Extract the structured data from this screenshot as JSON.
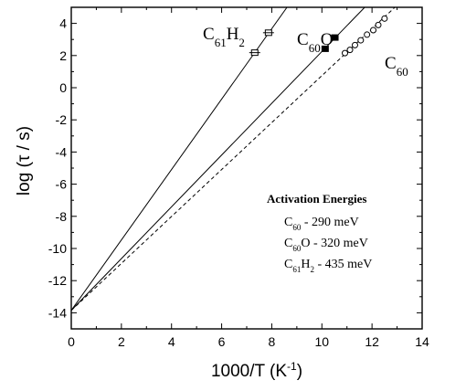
{
  "chart_data": {
    "type": "scatter",
    "xlabel": "1000/T (K",
    "xlabel_sup": "-1",
    "xlabel_close": ")",
    "ylabel": "log (τ / s)",
    "xlim": [
      0,
      14
    ],
    "ylim": [
      -15,
      5
    ],
    "x_ticks": [
      0,
      2,
      4,
      6,
      8,
      10,
      12,
      14
    ],
    "y_ticks": [
      -14,
      -12,
      -10,
      -8,
      -6,
      -4,
      -2,
      0,
      2,
      4
    ],
    "series": [
      {
        "key": "c61h2",
        "label_base": "C",
        "label_sub1": "61",
        "label_mid": "H",
        "label_sub2": "2",
        "marker": "open-square",
        "line_style": "solid",
        "fit": {
          "intercept": -13.85,
          "slope": 2.19
        },
        "points": [
          {
            "x": 7.32,
            "y": 2.18
          },
          {
            "x": 7.87,
            "y": 3.42
          }
        ]
      },
      {
        "key": "c60o",
        "label_base": "C",
        "label_sub1": "60",
        "label_mid": "O",
        "label_sub2": "",
        "marker": "filled-square",
        "line_style": "solid",
        "fit": {
          "intercept": -13.85,
          "slope": 1.61
        },
        "points": [
          {
            "x": 10.13,
            "y": 2.42
          },
          {
            "x": 10.52,
            "y": 3.12
          }
        ]
      },
      {
        "key": "c60",
        "label_base": "C",
        "label_sub1": "60",
        "label_mid": "",
        "label_sub2": "",
        "marker": "open-circle",
        "line_style": "dashed",
        "fit": {
          "intercept": -13.85,
          "slope": 1.46
        },
        "points": [
          {
            "x": 10.92,
            "y": 2.15
          },
          {
            "x": 11.12,
            "y": 2.35
          },
          {
            "x": 11.32,
            "y": 2.65
          },
          {
            "x": 11.55,
            "y": 2.95
          },
          {
            "x": 11.8,
            "y": 3.3
          },
          {
            "x": 12.05,
            "y": 3.58
          },
          {
            "x": 12.25,
            "y": 3.9
          },
          {
            "x": 12.5,
            "y": 4.3
          }
        ]
      }
    ],
    "legend": {
      "title": "Activation Energies",
      "entries": [
        {
          "base": "C",
          "sub1": "60",
          "mid": "",
          "sub2": "",
          "text": " - 290 meV"
        },
        {
          "base": "C",
          "sub1": "60",
          "mid": "O",
          "sub2": "",
          "text": " - 320 meV"
        },
        {
          "base": "C",
          "sub1": "61",
          "mid": "H",
          "sub2": "2",
          "text": " - 435 meV"
        }
      ]
    }
  }
}
